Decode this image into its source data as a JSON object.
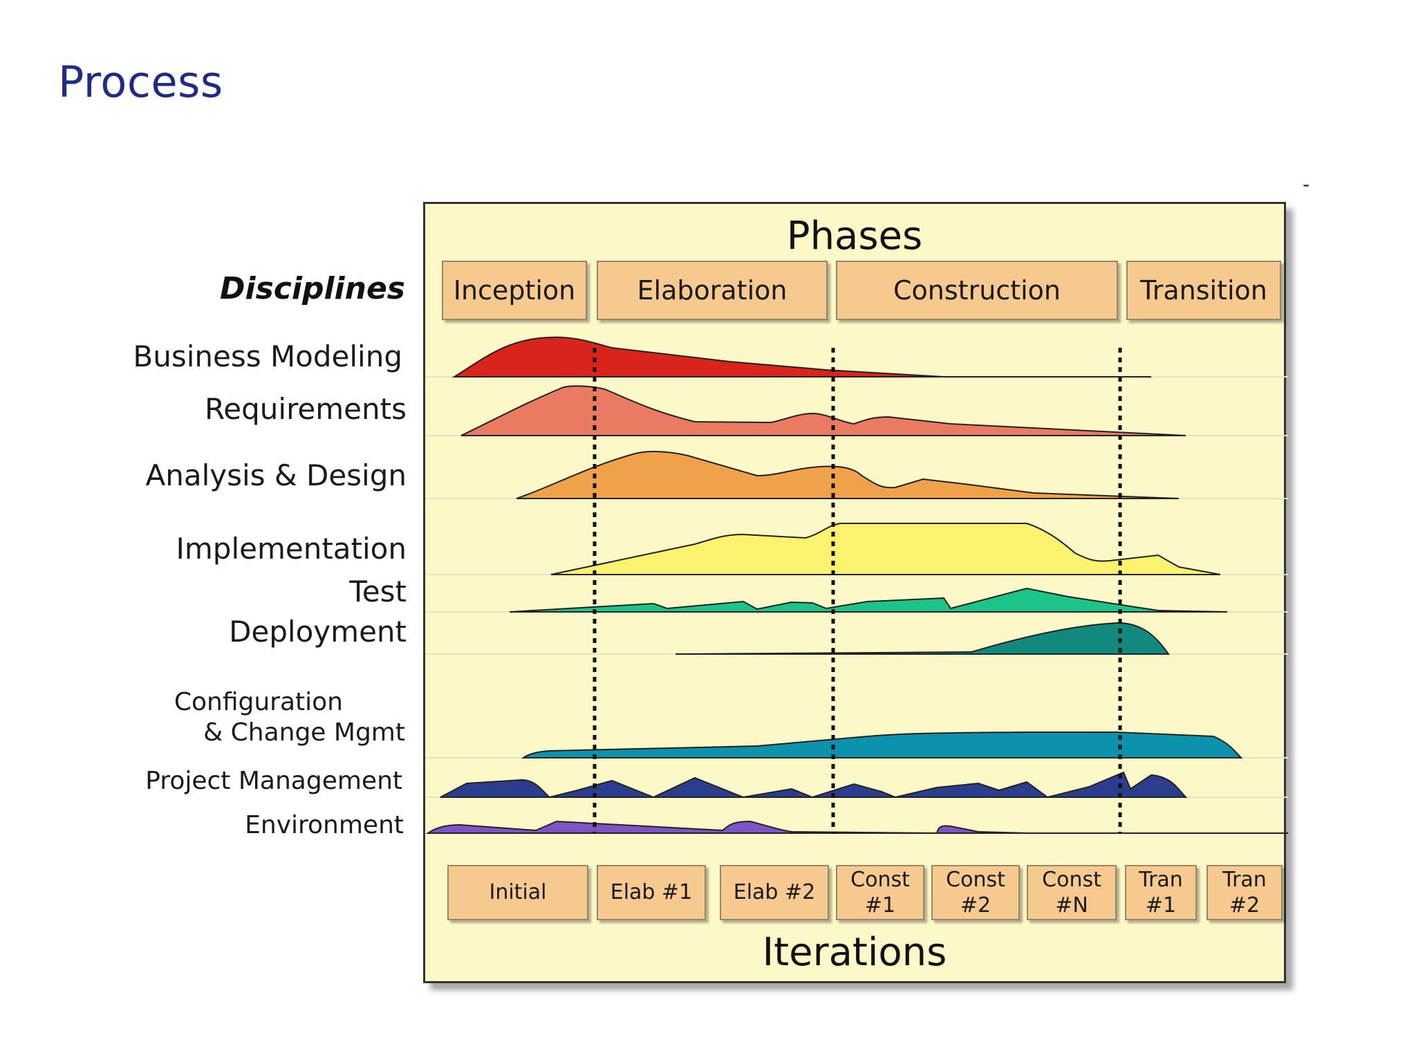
{
  "slide": {
    "title": "Process",
    "corner_mark": "-"
  },
  "diagram": {
    "phases_title": "Phases",
    "iterations_title": "Iterations",
    "disciplines_heading": "Disciplines",
    "phases": [
      "Inception",
      "Elaboration",
      "Construction",
      "Transition"
    ],
    "iterations": [
      "Initial",
      "Elab #1",
      "Elab #2",
      "Const #1",
      "Const #2",
      "Const #N",
      "Tran #1",
      "Tran #2"
    ],
    "disciplines": [
      {
        "name": "Business Modeling",
        "line1": "Business Modeling",
        "line2": "",
        "color": "#d9241c"
      },
      {
        "name": "Requirements",
        "line1": "Requirements",
        "line2": "",
        "color": "#ea7a62"
      },
      {
        "name": "Analysis & Design",
        "line1": "Analysis & Design",
        "line2": "",
        "color": "#f0a24a"
      },
      {
        "name": "Implementation",
        "line1": "Implementation",
        "line2": "",
        "color": "#fbf36e"
      },
      {
        "name": "Test",
        "line1": "Test",
        "line2": "",
        "color": "#1cc48a"
      },
      {
        "name": "Deployment",
        "line1": "Deployment",
        "line2": "",
        "color": "#11897f"
      },
      {
        "name": "Configuration & Change Mgmt",
        "line1": "Configuration",
        "line2": "& Change Mgmt",
        "color": "#0d92ad"
      },
      {
        "name": "Project Management",
        "line1": "Project Management",
        "line2": "",
        "color": "#2a3d8f"
      },
      {
        "name": "Environment",
        "line1": "Environment",
        "line2": "",
        "color": "#7e55c4"
      }
    ]
  }
}
